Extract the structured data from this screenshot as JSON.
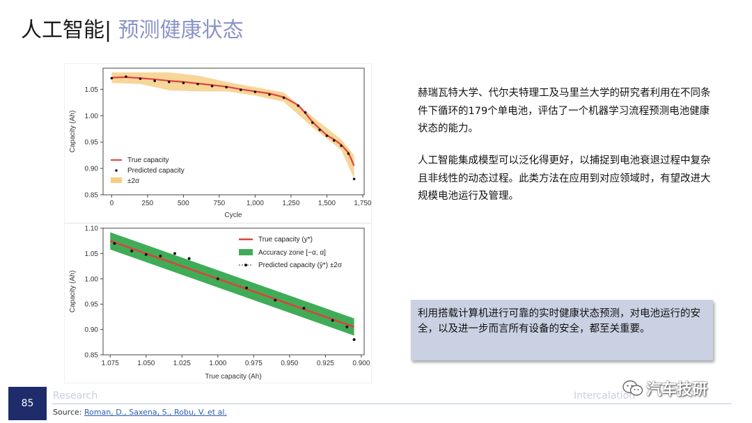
{
  "title": {
    "main": "人工智能",
    "separator": "|",
    "sub": "预测健康状态"
  },
  "paragraphs": {
    "p1": "赫瑞瓦特大学、代尔夫特理工及马里兰大学的研究者利用在不同条件下循环的179个单电池，评估了一个机器学习流程预测电池健康状态的能力。",
    "p2": "人工智能集成模型可以泛化得更好，以捕捉到电池衰退过程中复杂且非线性的动态过程。此类方法在应用到对应领域时，有望改进大规模电池运行及管理。"
  },
  "callout": "利用搭载计算机进行可靠的实时健康状态预测，对电池运行的安全，以及进一步而言所有设备的安全，都至关重要。",
  "footer": {
    "page_number": "85",
    "left_label": "Research",
    "right_label": "Intercalation",
    "source_prefix": "Source: ",
    "source_link": "Roman, D., Saxena, S., Robu, V. et al."
  },
  "watermark": {
    "text": "汽车技研",
    "icon": "wechat-icon"
  },
  "colors": {
    "title_sub": "#8a93c8",
    "badge": "#1f2c6b",
    "callout_bg": "#c9d1e2",
    "true_line": "#e0413c",
    "band": "#f2c063",
    "zone": "#1f9e3a"
  },
  "chart_data": [
    {
      "type": "line",
      "xlabel": "Cycle",
      "ylabel": "Capacity (Ah)",
      "xlim": [
        -60,
        1760
      ],
      "ylim": [
        0.85,
        1.09
      ],
      "x_ticks": [
        "0",
        "250",
        "500",
        "750",
        "1,000",
        "1,250",
        "1,500",
        "1,750"
      ],
      "y_ticks": [
        "0.85",
        "0.90",
        "0.95",
        "1.00",
        "1.05"
      ],
      "legend": {
        "placement": "bottom-left",
        "entries": [
          "True capacity",
          "Predicted capacity",
          "±2σ"
        ]
      },
      "series": [
        {
          "name": "True capacity",
          "x": [
            0,
            100,
            200,
            300,
            400,
            500,
            600,
            700,
            800,
            900,
            1000,
            1100,
            1200,
            1300,
            1350,
            1400,
            1450,
            1500,
            1550,
            1600,
            1650,
            1690
          ],
          "y": [
            1.072,
            1.073,
            1.071,
            1.069,
            1.066,
            1.064,
            1.061,
            1.058,
            1.055,
            1.05,
            1.046,
            1.042,
            1.035,
            1.02,
            1.005,
            0.988,
            0.975,
            0.963,
            0.955,
            0.945,
            0.93,
            0.905
          ]
        },
        {
          "name": "Predicted capacity",
          "x": [
            0,
            100,
            200,
            300,
            400,
            500,
            600,
            700,
            800,
            900,
            1000,
            1100,
            1200,
            1300,
            1350,
            1400,
            1450,
            1500,
            1550,
            1600,
            1650,
            1690
          ],
          "y": [
            1.071,
            1.074,
            1.07,
            1.066,
            1.064,
            1.062,
            1.06,
            1.056,
            1.054,
            1.049,
            1.045,
            1.04,
            1.034,
            1.019,
            1.006,
            0.987,
            0.973,
            0.962,
            0.953,
            0.943,
            0.928,
            0.88
          ]
        },
        {
          "name": "±2σ",
          "x": [
            0,
            200,
            400,
            600,
            800,
            1000,
            1200,
            1400,
            1600,
            1690
          ],
          "band": [
            [
              1.062,
              1.082
            ],
            [
              1.06,
              1.082
            ],
            [
              1.048,
              1.082
            ],
            [
              1.046,
              1.076
            ],
            [
              1.046,
              1.064
            ],
            [
              1.038,
              1.054
            ],
            [
              1.026,
              1.044
            ],
            [
              0.978,
              0.998
            ],
            [
              0.935,
              0.955
            ],
            [
              0.88,
              0.925
            ]
          ]
        }
      ]
    },
    {
      "type": "scatter",
      "xlabel": "True capacity (Ah)",
      "ylabel": "Capacity (Ah)",
      "xlim": [
        1.08,
        0.898
      ],
      "ylim": [
        0.85,
        1.1
      ],
      "x_ticks": [
        "1.075",
        "1.050",
        "1.025",
        "1.000",
        "0.975",
        "0.950",
        "0.925",
        "0.900"
      ],
      "y_ticks": [
        "0.85",
        "0.90",
        "0.95",
        "1.00",
        "1.05",
        "1.10"
      ],
      "legend": {
        "placement": "top-right",
        "entries": [
          "True capacity (y*)",
          "Accuracy zone [−α, α]",
          "Predicted capacity (ŷ*) ±2σ"
        ]
      },
      "series": [
        {
          "name": "True capacity (y*)",
          "x": [
            1.075,
            0.905
          ],
          "y": [
            1.075,
            0.905
          ]
        },
        {
          "name": "Accuracy zone [−α, α]",
          "x": [
            1.075,
            0.905
          ],
          "upper": [
            1.092,
            0.922
          ],
          "lower": [
            1.058,
            0.888
          ]
        },
        {
          "name": "Predicted capacity (ŷ*) ±2σ",
          "x": [
            1.072,
            1.06,
            1.05,
            1.04,
            1.03,
            1.02,
            1.0,
            0.98,
            0.96,
            0.94,
            0.92,
            0.91,
            0.905
          ],
          "y": [
            1.07,
            1.055,
            1.048,
            1.045,
            1.05,
            1.04,
            1.0,
            0.982,
            0.958,
            0.942,
            0.918,
            0.905,
            0.88
          ]
        }
      ]
    }
  ]
}
